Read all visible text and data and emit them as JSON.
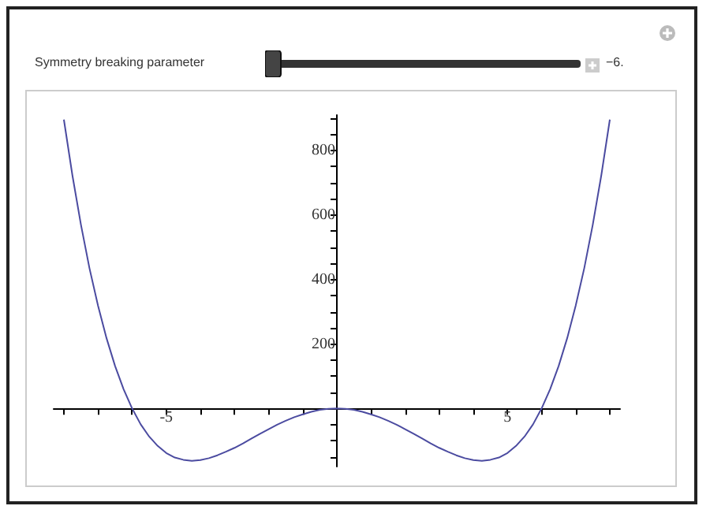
{
  "chart_data": {
    "type": "line",
    "annotations": [
      "Symmetry breaking parameter",
      "−6."
    ],
    "x": [
      -8,
      -7.75,
      -7.5,
      -7.25,
      -7,
      -6.75,
      -6.5,
      -6.25,
      -6,
      -5.75,
      -5.5,
      -5.25,
      -5,
      -4.75,
      -4.5,
      -4.25,
      -4,
      -3.75,
      -3.5,
      -3.25,
      -3,
      -2.75,
      -2.5,
      -2.25,
      -2,
      -1.75,
      -1.5,
      -1.25,
      -1,
      -0.75,
      -0.5,
      -0.25,
      0,
      0.25,
      0.5,
      0.75,
      1,
      1.25,
      1.5,
      1.75,
      2,
      2.25,
      2.5,
      2.75,
      3,
      3.25,
      3.5,
      3.75,
      4,
      4.25,
      4.5,
      4.75,
      5,
      5.25,
      5.5,
      5.75,
      6,
      6.25,
      6.5,
      6.75,
      7,
      7.25,
      7.5,
      7.75,
      8
    ],
    "series": [
      {
        "color": "#4b4ba0",
        "values": [
          896,
          723,
          570,
          435,
          319,
          218,
          132,
          60,
          0,
          -49,
          -87,
          -116,
          -138,
          -152,
          -159,
          -162,
          -160,
          -154,
          -145,
          -134,
          -122,
          -108,
          -93,
          -78,
          -64,
          -50,
          -38,
          -27,
          -18,
          -10,
          -4,
          -1,
          0,
          -1,
          -4,
          -10,
          -18,
          -27,
          -38,
          -50,
          -64,
          -78,
          -93,
          -108,
          -122,
          -134,
          -145,
          -154,
          -160,
          -162,
          -159,
          -152,
          -138,
          -116,
          -87,
          -49,
          0,
          60,
          132,
          218,
          319,
          435,
          570,
          723,
          896
        ]
      }
    ],
    "xlim": [
      -8.3,
      8.3
    ],
    "ylim": [
      -180,
      910
    ],
    "xticks": [
      {
        "value": -8,
        "label": null
      },
      {
        "value": -7,
        "label": null
      },
      {
        "value": -6,
        "label": null
      },
      -5,
      {
        "value": -4,
        "label": null
      },
      {
        "value": -3,
        "label": null
      },
      {
        "value": -2,
        "label": null
      },
      {
        "value": -1,
        "label": null
      },
      {
        "value": 1,
        "label": null
      },
      {
        "value": 2,
        "label": null
      },
      {
        "value": 3,
        "label": null
      },
      {
        "value": 4,
        "label": null
      },
      5,
      {
        "value": 6,
        "label": null
      },
      {
        "value": 7,
        "label": null
      },
      {
        "value": 8,
        "label": null
      }
    ],
    "yticks": [
      {
        "value": -150,
        "label": null
      },
      {
        "value": -100,
        "label": null
      },
      {
        "value": -50,
        "label": null
      },
      {
        "value": 50,
        "label": null
      },
      {
        "value": 100,
        "label": null
      },
      {
        "value": 150,
        "label": null
      },
      200,
      {
        "value": 250,
        "label": null
      },
      {
        "value": 300,
        "label": null
      },
      {
        "value": 350,
        "label": null
      },
      400,
      {
        "value": 450,
        "label": null
      },
      {
        "value": 500,
        "label": null
      },
      {
        "value": 550,
        "label": null
      },
      600,
      {
        "value": 650,
        "label": null
      },
      {
        "value": 700,
        "label": null
      },
      {
        "value": 750,
        "label": null
      },
      800,
      {
        "value": 850,
        "label": null
      },
      {
        "value": 900,
        "label": null
      }
    ],
    "grid": false,
    "marker": "none",
    "line_style": "solid"
  }
}
